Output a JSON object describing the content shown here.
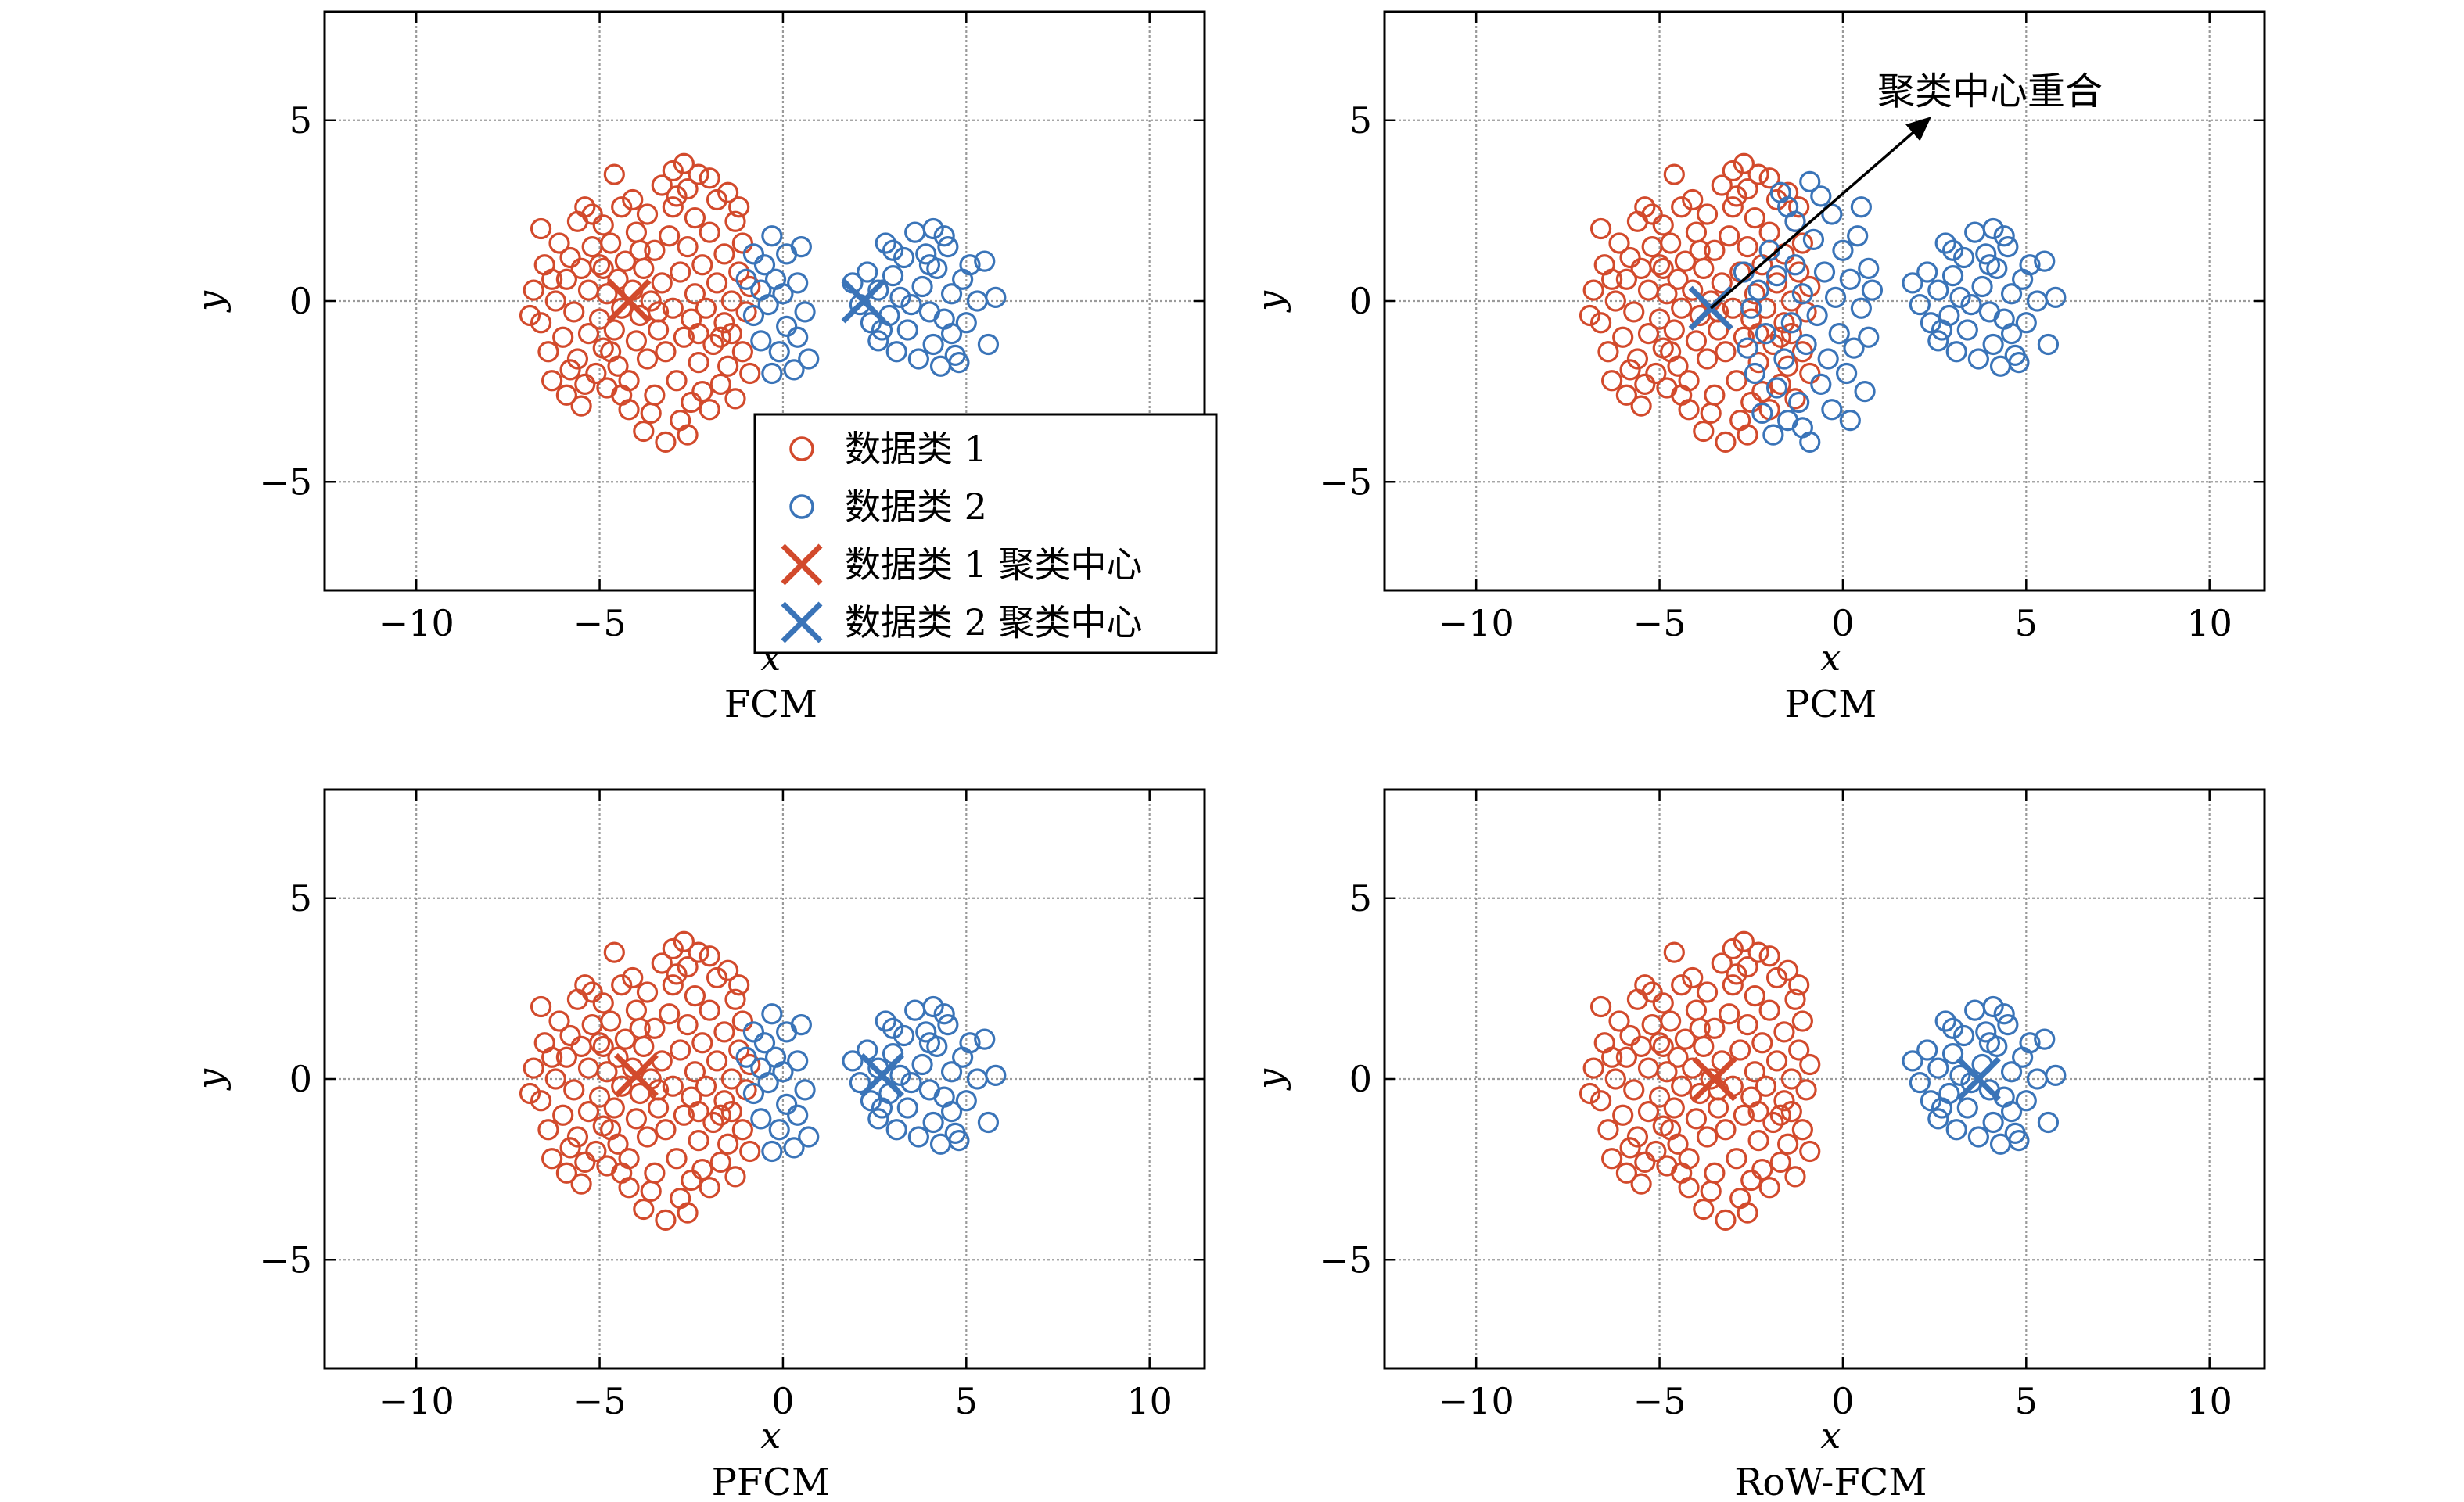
{
  "colors": {
    "class1": "#d24a2c",
    "class2": "#3a74b8",
    "grid": "#9a9a9a",
    "axis": "#000000"
  },
  "legend": {
    "entries": [
      {
        "label": "数据类 1",
        "marker": "circle",
        "color": "#d24a2c"
      },
      {
        "label": "数据类 2",
        "marker": "circle",
        "color": "#3a74b8"
      },
      {
        "label": "数据类 1 聚类中心",
        "marker": "cross",
        "color": "#d24a2c"
      },
      {
        "label": "数据类 2 聚类中心",
        "marker": "cross",
        "color": "#3a74b8"
      }
    ],
    "location": "lower-right of FCM panel"
  },
  "chart_data": [
    {
      "type": "scatter",
      "title": "FCM",
      "xlabel": "x",
      "ylabel": "y",
      "xlim": [
        -12.5,
        11.5
      ],
      "ylim": [
        -8,
        8
      ],
      "xticks": [
        -10,
        -5,
        0,
        5,
        10
      ],
      "yticks": [
        -5,
        0,
        5
      ],
      "xtick_labels": [
        "−10",
        "−5",
        "0",
        "5",
        "10"
      ],
      "ytick_labels": [
        "−5",
        "0",
        "5"
      ],
      "grid": true,
      "centers": [
        {
          "series": "数据类 1 聚类中心",
          "x": -4.2,
          "y": 0.0
        },
        {
          "series": "数据类 2 聚类中心",
          "x": 2.2,
          "y": 0.0
        }
      ]
    },
    {
      "type": "scatter",
      "title": "PCM",
      "xlabel": "x",
      "ylabel": "y",
      "xlim": [
        -12.5,
        11.5
      ],
      "ylim": [
        -8,
        8
      ],
      "xticks": [
        -10,
        -5,
        0,
        5,
        10
      ],
      "yticks": [
        -5,
        0,
        5
      ],
      "xtick_labels": [
        "−10",
        "−5",
        "0",
        "5",
        "10"
      ],
      "ytick_labels": [
        "−5",
        "0",
        "5"
      ],
      "grid": true,
      "centers": [
        {
          "series": "数据类 1 聚类中心",
          "x": -3.6,
          "y": -0.2
        },
        {
          "series": "数据类 2 聚类中心",
          "x": -3.6,
          "y": -0.2
        }
      ],
      "annotation": {
        "text": "聚类中心重合",
        "arrow_from": [
          -3.6,
          -0.2
        ],
        "arrow_to": [
          2.3,
          5.0
        ]
      }
    },
    {
      "type": "scatter",
      "title": "PFCM",
      "xlabel": "x",
      "ylabel": "y",
      "xlim": [
        -12.5,
        11.5
      ],
      "ylim": [
        -8,
        8
      ],
      "xticks": [
        -10,
        -5,
        0,
        5,
        10
      ],
      "yticks": [
        -5,
        0,
        5
      ],
      "xtick_labels": [
        "−10",
        "−5",
        "0",
        "5",
        "10"
      ],
      "ytick_labels": [
        "−5",
        "0",
        "5"
      ],
      "grid": true,
      "centers": [
        {
          "series": "数据类 1 聚类中心",
          "x": -4.0,
          "y": 0.1
        },
        {
          "series": "数据类 2 聚类中心",
          "x": 2.7,
          "y": 0.1
        }
      ]
    },
    {
      "type": "scatter",
      "title": "RoW-FCM",
      "xlabel": "x",
      "ylabel": "y",
      "xlim": [
        -12.5,
        11.5
      ],
      "ylim": [
        -8,
        8
      ],
      "xticks": [
        -10,
        -5,
        0,
        5,
        10
      ],
      "yticks": [
        -5,
        0,
        5
      ],
      "xtick_labels": [
        "−10",
        "−5",
        "0",
        "5",
        "10"
      ],
      "ytick_labels": [
        "−5",
        "0",
        "5"
      ],
      "grid": true,
      "centers": [
        {
          "series": "数据类 1 聚类中心",
          "x": -3.5,
          "y": 0.0
        },
        {
          "series": "数据类 2 聚类中心",
          "x": 3.7,
          "y": 0.0
        }
      ]
    }
  ],
  "point_sets": {
    "class1_core": [
      [
        -6.8,
        0.3
      ],
      [
        -6.6,
        -0.6
      ],
      [
        -6.5,
        1.0
      ],
      [
        -6.4,
        -1.4
      ],
      [
        -6.3,
        -2.2
      ],
      [
        -6.2,
        0.0
      ],
      [
        -6.1,
        1.6
      ],
      [
        -6.0,
        -1.0
      ],
      [
        -5.9,
        0.6
      ],
      [
        -5.9,
        -2.6
      ],
      [
        -5.8,
        1.2
      ],
      [
        -5.7,
        -0.3
      ],
      [
        -5.6,
        2.2
      ],
      [
        -5.6,
        -1.6
      ],
      [
        -5.5,
        0.9
      ],
      [
        -5.5,
        -2.9
      ],
      [
        -5.4,
        2.6
      ],
      [
        -5.3,
        0.3
      ],
      [
        -5.3,
        -0.9
      ],
      [
        -5.2,
        1.5
      ],
      [
        -5.1,
        -2.0
      ],
      [
        -5.0,
        -0.5
      ],
      [
        -5.0,
        1.0
      ],
      [
        -4.9,
        2.1
      ],
      [
        -4.9,
        -1.3
      ],
      [
        -4.8,
        0.2
      ],
      [
        -4.8,
        -2.4
      ],
      [
        -4.7,
        1.6
      ],
      [
        -4.6,
        -0.8
      ],
      [
        -4.6,
        3.5
      ],
      [
        -4.5,
        0.6
      ],
      [
        -4.5,
        -1.8
      ],
      [
        -4.4,
        2.6
      ],
      [
        -4.4,
        -0.2
      ],
      [
        -4.3,
        1.1
      ],
      [
        -4.2,
        -2.2
      ],
      [
        -4.2,
        -3.0
      ],
      [
        -4.1,
        0.3
      ],
      [
        -4.0,
        1.9
      ],
      [
        -4.0,
        -1.1
      ],
      [
        -3.9,
        -0.4
      ],
      [
        -3.8,
        0.9
      ],
      [
        -3.8,
        -3.6
      ],
      [
        -3.7,
        2.4
      ],
      [
        -3.7,
        -1.6
      ],
      [
        -3.6,
        0.0
      ],
      [
        -3.5,
        -2.6
      ],
      [
        -3.5,
        1.4
      ],
      [
        -3.4,
        -0.8
      ],
      [
        -3.3,
        3.2
      ],
      [
        -3.3,
        0.5
      ],
      [
        -3.2,
        -3.9
      ],
      [
        -3.2,
        -1.4
      ],
      [
        -3.1,
        1.8
      ],
      [
        -3.0,
        -0.2
      ],
      [
        -3.0,
        3.6
      ],
      [
        -2.9,
        -2.2
      ],
      [
        -2.9,
        2.9
      ],
      [
        -2.8,
        0.8
      ],
      [
        -2.8,
        -3.3
      ],
      [
        -2.7,
        3.8
      ],
      [
        -2.7,
        -1.0
      ],
      [
        -2.6,
        1.5
      ],
      [
        -2.6,
        3.1
      ],
      [
        -2.5,
        -0.5
      ],
      [
        -2.5,
        -2.8
      ],
      [
        -2.4,
        0.2
      ],
      [
        -2.4,
        2.3
      ],
      [
        -2.3,
        -1.7
      ],
      [
        -2.3,
        3.5
      ],
      [
        -2.2,
        1.0
      ],
      [
        -2.1,
        -0.2
      ],
      [
        -2.0,
        -3.0
      ],
      [
        -2.0,
        1.9
      ],
      [
        -1.9,
        -1.2
      ],
      [
        -1.8,
        0.5
      ],
      [
        -1.8,
        2.8
      ],
      [
        -1.7,
        -2.3
      ],
      [
        -1.6,
        -0.6
      ],
      [
        -1.6,
        1.3
      ],
      [
        -1.5,
        3.0
      ],
      [
        -1.5,
        -1.8
      ],
      [
        -1.4,
        0.0
      ],
      [
        -1.3,
        -2.7
      ],
      [
        -1.3,
        2.2
      ],
      [
        -1.2,
        0.8
      ],
      [
        -1.1,
        -1.4
      ],
      [
        -1.1,
        1.6
      ],
      [
        -1.0,
        -0.3
      ],
      [
        -0.9,
        -2.0
      ],
      [
        -0.9,
        0.4
      ],
      [
        -6.9,
        -0.4
      ],
      [
        -6.6,
        2.0
      ],
      [
        -5.4,
        -2.3
      ],
      [
        -4.4,
        -2.6
      ],
      [
        -3.6,
        -3.1
      ],
      [
        -2.6,
        -3.7
      ],
      [
        -2.2,
        -2.5
      ],
      [
        -1.7,
        -1.0
      ],
      [
        -5.2,
        2.4
      ],
      [
        -4.1,
        2.8
      ],
      [
        -3.0,
        2.6
      ],
      [
        -2.0,
        3.4
      ],
      [
        -1.2,
        2.6
      ],
      [
        -5.8,
        -1.9
      ],
      [
        -4.9,
        0.9
      ],
      [
        -3.9,
        1.4
      ],
      [
        -3.4,
        -0.3
      ],
      [
        -2.3,
        -0.9
      ],
      [
        -1.4,
        -0.9
      ],
      [
        -6.3,
        0.6
      ],
      [
        -4.7,
        -1.4
      ]
    ],
    "class2_right": [
      [
        1.9,
        0.5
      ],
      [
        2.1,
        -0.1
      ],
      [
        2.3,
        0.8
      ],
      [
        2.4,
        -0.6
      ],
      [
        2.6,
        0.3
      ],
      [
        2.6,
        -1.1
      ],
      [
        2.8,
        1.6
      ],
      [
        2.9,
        -0.4
      ],
      [
        3.0,
        0.7
      ],
      [
        3.1,
        -1.4
      ],
      [
        3.2,
        0.1
      ],
      [
        3.3,
        1.2
      ],
      [
        3.4,
        -0.8
      ],
      [
        3.6,
        1.9
      ],
      [
        3.7,
        -1.6
      ],
      [
        3.8,
        0.4
      ],
      [
        3.9,
        1.3
      ],
      [
        4.0,
        -0.3
      ],
      [
        4.1,
        -1.2
      ],
      [
        4.1,
        2.0
      ],
      [
        4.2,
        0.9
      ],
      [
        4.3,
        -1.8
      ],
      [
        4.4,
        -0.5
      ],
      [
        4.5,
        1.5
      ],
      [
        4.6,
        0.2
      ],
      [
        4.7,
        -1.5
      ],
      [
        4.8,
        -1.7
      ],
      [
        4.9,
        0.6
      ],
      [
        5.0,
        -0.6
      ],
      [
        5.3,
        0.0
      ],
      [
        5.5,
        1.1
      ],
      [
        5.6,
        -1.2
      ],
      [
        5.8,
        0.1
      ],
      [
        4.0,
        1.0
      ],
      [
        3.5,
        -0.1
      ],
      [
        4.4,
        1.8
      ],
      [
        2.7,
        -0.8
      ],
      [
        3.0,
        1.4
      ],
      [
        4.6,
        -0.9
      ],
      [
        5.1,
        1.0
      ]
    ],
    "class2_bridge": [
      [
        -1.0,
        0.6
      ],
      [
        -0.8,
        1.3
      ],
      [
        -0.8,
        -0.4
      ],
      [
        -0.6,
        0.3
      ],
      [
        -0.6,
        -1.1
      ],
      [
        -0.5,
        1.0
      ],
      [
        -0.4,
        -0.1
      ],
      [
        -0.3,
        -2.0
      ],
      [
        -0.3,
        1.8
      ],
      [
        -0.2,
        0.6
      ],
      [
        -0.1,
        -1.4
      ],
      [
        0.0,
        0.2
      ],
      [
        0.1,
        1.3
      ],
      [
        0.1,
        -0.7
      ],
      [
        0.3,
        -1.9
      ],
      [
        0.4,
        0.5
      ],
      [
        0.4,
        -1.0
      ],
      [
        0.5,
        1.5
      ],
      [
        0.6,
        -0.3
      ],
      [
        0.7,
        -1.6
      ]
    ],
    "pcm_middle_cloud": [
      [
        -2.6,
        -1.3
      ],
      [
        -2.4,
        -2.0
      ],
      [
        -2.2,
        -3.1
      ],
      [
        -2.1,
        -0.9
      ],
      [
        -2.0,
        1.4
      ],
      [
        -1.9,
        -3.7
      ],
      [
        -1.8,
        -2.4
      ],
      [
        -1.8,
        0.7
      ],
      [
        -1.6,
        -1.6
      ],
      [
        -1.5,
        -3.3
      ],
      [
        -1.4,
        -0.6
      ],
      [
        -1.3,
        2.2
      ],
      [
        -1.3,
        1.0
      ],
      [
        -1.2,
        -2.8
      ],
      [
        -1.1,
        0.2
      ],
      [
        -1.0,
        -1.2
      ],
      [
        -0.9,
        3.3
      ],
      [
        -0.9,
        -3.9
      ],
      [
        -0.8,
        1.7
      ],
      [
        -0.7,
        -0.4
      ],
      [
        -0.6,
        -2.3
      ],
      [
        -0.5,
        0.8
      ],
      [
        -0.4,
        -1.6
      ],
      [
        -0.3,
        2.4
      ],
      [
        -0.3,
        -3.0
      ],
      [
        -0.2,
        0.1
      ],
      [
        -0.1,
        -0.9
      ],
      [
        0.0,
        1.4
      ],
      [
        0.1,
        -2.0
      ],
      [
        0.2,
        0.6
      ],
      [
        0.3,
        -1.3
      ],
      [
        0.4,
        1.8
      ],
      [
        0.5,
        -0.2
      ],
      [
        0.6,
        -2.5
      ],
      [
        0.7,
        0.9
      ],
      [
        0.7,
        -1.0
      ],
      [
        -2.7,
        0.8
      ],
      [
        -2.5,
        -0.2
      ],
      [
        -1.7,
        3.0
      ],
      [
        -1.1,
        -3.5
      ],
      [
        0.2,
        -3.3
      ],
      [
        -0.6,
        2.9
      ],
      [
        -2.3,
        0.3
      ],
      [
        0.8,
        0.3
      ],
      [
        0.5,
        2.6
      ],
      [
        -1.5,
        2.6
      ]
    ]
  }
}
